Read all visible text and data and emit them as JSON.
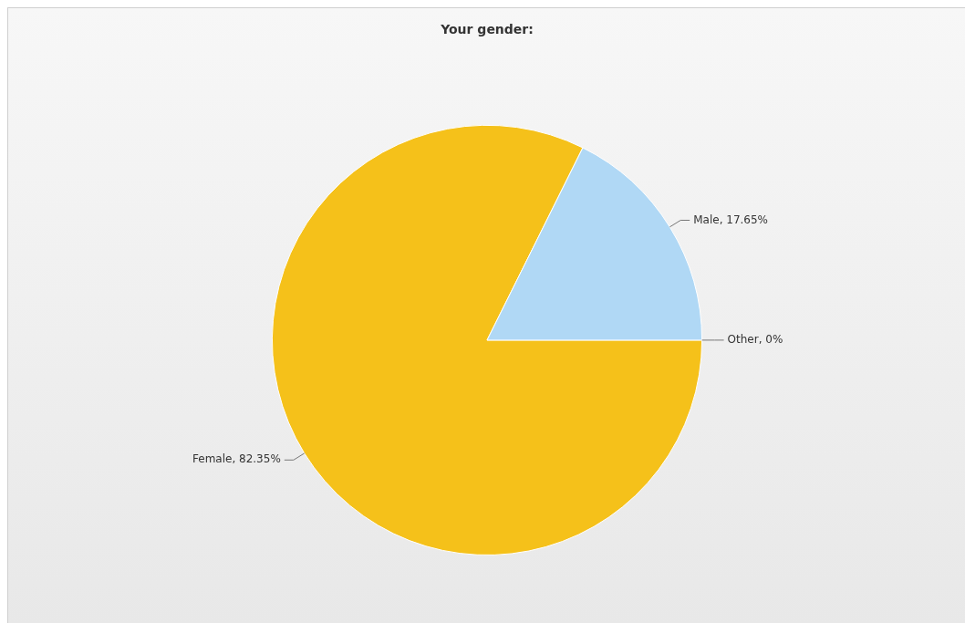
{
  "chart_data": {
    "type": "pie",
    "title": "Your gender:",
    "categories": [
      "Female",
      "Male",
      "Other"
    ],
    "values": [
      82.35,
      17.65,
      0
    ],
    "value_labels": [
      "82.35%",
      "17.65%",
      "0%"
    ],
    "colors": [
      "#f5c11a",
      "#b0d8f5",
      "#9e9e9e"
    ]
  }
}
